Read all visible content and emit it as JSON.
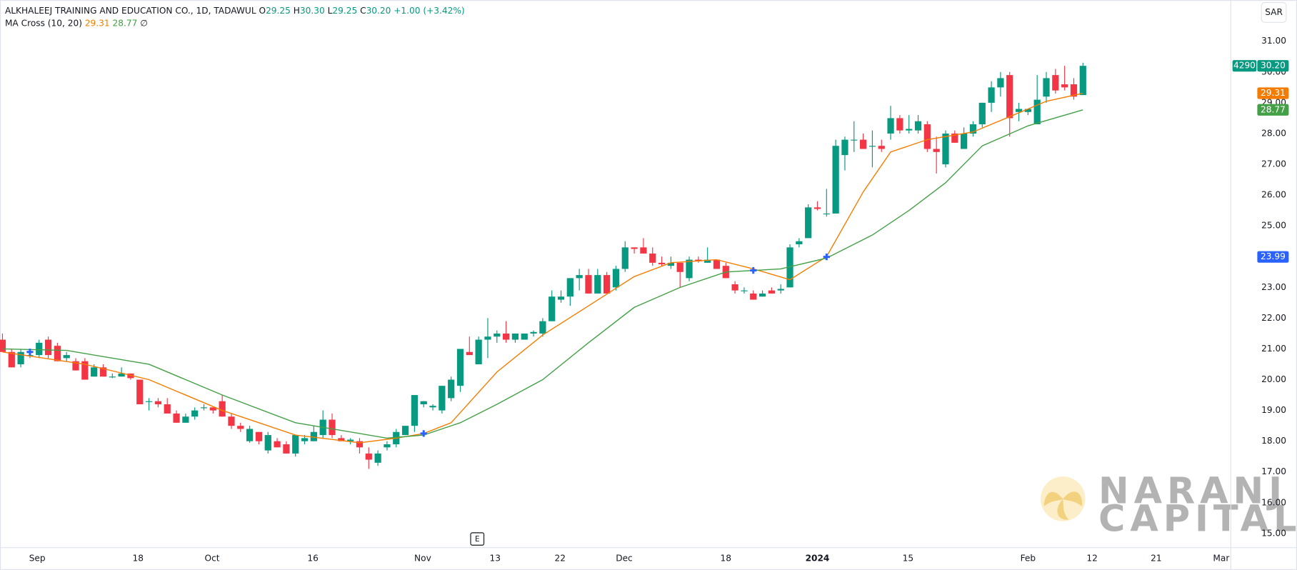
{
  "chart_data": {
    "type": "candlestick",
    "header": {
      "symbol": "ALKHALEEJ TRAINING AND EDUCATION CO., 1D, TADAWUL",
      "ohlc": [
        {
          "label": "O",
          "value": "29.25"
        },
        {
          "label": "H",
          "value": "30.30"
        },
        {
          "label": "L",
          "value": "29.25"
        },
        {
          "label": "C",
          "value": "30.20"
        }
      ],
      "change": "+1.00 (+3.42%)"
    },
    "indicator": {
      "name": "MA Cross (10, 20)",
      "values": [
        "29.31",
        "28.77"
      ],
      "symbol": "∅"
    },
    "currency": "SAR",
    "event_marker": "E",
    "watermark": [
      "NARANJ",
      "CAPITAL"
    ],
    "up_color": "#089981",
    "down_color": "#f23645",
    "candles": {
      "open": [
        21.3,
        20.9,
        20.5,
        20.8,
        20.8,
        21.3,
        21.1,
        20.7,
        20.6,
        20.6,
        20.1,
        20.4,
        20.1,
        20.1,
        20.2,
        20.0,
        19.3,
        19.3,
        19.2,
        18.9,
        18.6,
        18.8,
        19.1,
        19.1,
        19.3,
        18.8,
        18.5,
        18.0,
        18.3,
        17.7,
        18.0,
        17.9,
        17.6,
        18.0,
        18.0,
        18.2,
        18.7,
        18.1,
        18.0,
        18.0,
        17.6,
        17.3,
        17.8,
        17.9,
        18.2,
        18.5,
        19.2,
        19.1,
        19.0,
        19.4,
        19.8,
        20.9,
        20.5,
        21.3,
        21.4,
        21.5,
        21.3,
        21.3,
        21.5,
        21.5,
        21.9,
        22.6,
        22.7,
        23.3,
        23.4,
        22.8,
        23.4,
        23.0,
        23.6,
        24.3,
        24.3,
        24.1,
        23.8,
        23.7,
        23.8,
        23.3,
        23.9,
        23.8,
        23.9,
        23.7,
        23.1,
        22.9,
        22.8,
        22.7,
        22.9,
        22.9,
        23.0,
        24.4,
        24.6,
        25.6,
        25.4,
        25.4,
        27.3,
        27.8,
        27.8,
        27.6,
        27.6,
        28.0,
        28.5,
        28.1,
        28.1,
        28.3,
        27.5,
        27.0,
        28.0,
        27.5,
        28.0,
        28.3,
        29.0,
        29.5,
        29.9,
        28.7,
        28.7,
        28.3,
        29.2,
        29.9,
        29.6,
        29.6,
        29.25
      ],
      "high": [
        21.5,
        21.0,
        21.0,
        21.0,
        21.3,
        21.4,
        21.2,
        20.9,
        20.7,
        20.7,
        20.5,
        20.5,
        20.2,
        20.4,
        20.2,
        20.0,
        19.4,
        19.4,
        19.4,
        19.0,
        18.9,
        19.1,
        19.2,
        19.1,
        19.5,
        18.9,
        18.6,
        18.5,
        18.3,
        18.3,
        18.1,
        18.0,
        18.2,
        18.2,
        18.5,
        19.0,
        18.9,
        18.2,
        18.1,
        18.1,
        17.8,
        17.7,
        18.0,
        18.4,
        18.5,
        19.5,
        19.3,
        19.2,
        19.8,
        20.1,
        21.0,
        21.4,
        21.4,
        22.0,
        21.6,
        21.9,
        21.5,
        21.5,
        21.6,
        22.0,
        22.9,
        22.9,
        23.3,
        23.6,
        23.6,
        23.6,
        23.5,
        23.7,
        24.5,
        24.3,
        24.6,
        24.3,
        24.0,
        24.0,
        23.8,
        24.0,
        24.0,
        24.3,
        23.9,
        23.8,
        23.2,
        23.0,
        22.9,
        22.9,
        23.0,
        23.1,
        24.4,
        24.6,
        25.7,
        25.8,
        26.2,
        27.8,
        27.9,
        28.4,
        28.0,
        28.1,
        27.8,
        28.9,
        28.6,
        28.6,
        28.6,
        28.4,
        27.9,
        28.1,
        28.1,
        28.2,
        28.4,
        29.0,
        29.7,
        30.0,
        30.0,
        29.0,
        28.8,
        29.9,
        30.0,
        30.1,
        30.2,
        29.8,
        30.3
      ],
      "low": [
        20.9,
        20.4,
        20.4,
        20.7,
        20.7,
        20.7,
        20.6,
        20.6,
        20.3,
        20.0,
        20.1,
        20.1,
        20.05,
        20.1,
        20.0,
        19.2,
        19.0,
        19.1,
        18.9,
        18.6,
        18.6,
        18.7,
        19.0,
        18.9,
        18.8,
        18.4,
        18.3,
        17.95,
        17.9,
        17.6,
        17.8,
        17.6,
        17.5,
        17.9,
        18.0,
        18.1,
        18.1,
        18.0,
        17.9,
        17.6,
        17.1,
        17.2,
        17.7,
        17.8,
        18.2,
        18.3,
        19.1,
        19.0,
        18.9,
        19.3,
        19.6,
        20.8,
        20.5,
        20.7,
        21.2,
        21.2,
        21.2,
        21.3,
        21.4,
        21.4,
        21.9,
        22.5,
        22.4,
        22.9,
        22.8,
        22.8,
        22.8,
        22.9,
        23.5,
        24.1,
        24.1,
        23.7,
        23.7,
        23.6,
        23.0,
        23.2,
        23.8,
        23.8,
        23.6,
        23.3,
        22.8,
        22.8,
        22.6,
        22.7,
        22.8,
        22.8,
        23.0,
        24.3,
        24.6,
        25.5,
        25.3,
        25.4,
        26.8,
        27.4,
        27.5,
        26.9,
        27.4,
        27.8,
        28.0,
        28.0,
        28.0,
        27.4,
        26.7,
        26.9,
        27.7,
        27.5,
        27.9,
        28.2,
        28.7,
        29.2,
        27.9,
        28.4,
        28.6,
        28.3,
        29.0,
        29.3,
        29.4,
        29.1,
        29.25
      ],
      "close": [
        20.9,
        20.4,
        20.9,
        20.8,
        21.2,
        20.8,
        20.6,
        20.8,
        20.3,
        20.0,
        20.4,
        20.1,
        20.1,
        20.2,
        20.05,
        19.2,
        19.3,
        19.2,
        18.9,
        18.6,
        18.8,
        19.0,
        19.1,
        19.0,
        18.8,
        18.5,
        18.4,
        18.4,
        18.0,
        18.2,
        17.8,
        17.6,
        18.2,
        18.1,
        18.3,
        18.7,
        18.2,
        18.0,
        18.05,
        17.8,
        17.4,
        17.6,
        17.9,
        18.3,
        18.5,
        19.5,
        19.3,
        19.15,
        19.8,
        20.0,
        21.0,
        20.8,
        21.3,
        21.4,
        21.5,
        21.3,
        21.5,
        21.5,
        21.55,
        21.9,
        22.7,
        22.7,
        23.3,
        23.4,
        22.8,
        23.4,
        22.8,
        23.6,
        24.3,
        24.25,
        24.1,
        23.8,
        23.75,
        23.8,
        23.5,
        23.9,
        23.85,
        23.9,
        23.6,
        23.3,
        22.9,
        22.9,
        22.6,
        22.8,
        22.8,
        22.95,
        24.3,
        24.5,
        25.6,
        25.55,
        25.4,
        27.6,
        27.8,
        27.8,
        27.5,
        27.6,
        27.5,
        28.5,
        28.1,
        28.15,
        28.4,
        27.5,
        27.4,
        28.0,
        27.7,
        28.0,
        28.3,
        29.0,
        29.5,
        29.8,
        28.5,
        28.8,
        28.8,
        29.1,
        29.8,
        29.4,
        29.5,
        29.2,
        30.2
      ]
    },
    "series": [
      {
        "color": "#f57c00",
        "x": [
          0,
          9,
          16,
          24,
          32,
          39,
          43,
          46,
          49,
          54,
          59,
          64,
          69,
          73,
          78,
          82,
          86,
          90,
          94,
          97,
          101,
          106,
          110,
          114,
          118
        ],
        "values": [
          20.9,
          20.5,
          20.0,
          19.0,
          18.2,
          17.95,
          18.1,
          18.25,
          18.6,
          20.25,
          21.45,
          22.4,
          23.35,
          23.8,
          23.9,
          23.6,
          23.25,
          24.0,
          26.1,
          27.4,
          27.8,
          28.05,
          28.55,
          29.05,
          29.31
        ]
      },
      {
        "color": "#43a047",
        "x": [
          0,
          7,
          16,
          24,
          32,
          42,
          46,
          50,
          54,
          59,
          64,
          69,
          74,
          79,
          85,
          90,
          95,
          99,
          103,
          107,
          112,
          118
        ],
        "values": [
          21.0,
          20.95,
          20.5,
          19.5,
          18.6,
          18.1,
          18.2,
          18.6,
          19.2,
          20.0,
          21.2,
          22.35,
          23.0,
          23.5,
          23.6,
          23.95,
          24.7,
          25.5,
          26.4,
          27.6,
          28.25,
          28.77
        ]
      }
    ],
    "crosses": {
      "color": "#2962ff",
      "x": [
        3,
        46,
        82,
        90
      ],
      "values": [
        20.9,
        18.25,
        23.55,
        23.99
      ]
    },
    "price_labels": [
      {
        "value": 30.2,
        "label": "30.20",
        "prefix": "4290",
        "color": "#089981"
      },
      {
        "value": 29.31,
        "label": "29.31",
        "color": "#f57c00"
      },
      {
        "value": 28.77,
        "label": "28.77",
        "color": "#43a047"
      },
      {
        "value": 23.99,
        "label": "23.99",
        "color": "#2962ff"
      }
    ],
    "xlim": [
      -0.27,
      134.15
    ],
    "ylim": [
      14.54,
      32.34
    ],
    "xticks": [
      {
        "value": 3.8,
        "label": "Sep"
      },
      {
        "value": 14.8,
        "label": "18"
      },
      {
        "value": 22.9,
        "label": "Oct"
      },
      {
        "value": 33.9,
        "label": "16"
      },
      {
        "value": 45.9,
        "label": "Nov"
      },
      {
        "value": 53.8,
        "label": "13"
      },
      {
        "value": 60.9,
        "label": "22"
      },
      {
        "value": 67.9,
        "label": "Dec"
      },
      {
        "value": 79.0,
        "label": "18"
      },
      {
        "value": 89.0,
        "label": "2024"
      },
      {
        "value": 98.9,
        "label": "15"
      },
      {
        "value": 112.0,
        "label": "Feb"
      },
      {
        "value": 119.0,
        "label": "12"
      },
      {
        "value": 126.0,
        "label": "21"
      },
      {
        "value": 133.1,
        "label": "Mar"
      }
    ],
    "yticks": [
      {
        "value": 15,
        "label": "15.00"
      },
      {
        "value": 16,
        "label": "16.00"
      },
      {
        "value": 17,
        "label": "17.00"
      },
      {
        "value": 18,
        "label": "18.00"
      },
      {
        "value": 19,
        "label": "19.00"
      },
      {
        "value": 20,
        "label": "20.00"
      },
      {
        "value": 21,
        "label": "21.00"
      },
      {
        "value": 22,
        "label": "22.00"
      },
      {
        "value": 23,
        "label": "23.00"
      },
      {
        "value": 24,
        "label": "24.00"
      },
      {
        "value": 25,
        "label": "25.00"
      },
      {
        "value": 26,
        "label": "26.00"
      },
      {
        "value": 27,
        "label": "27.00"
      },
      {
        "value": 28,
        "label": "28.00"
      },
      {
        "value": 29,
        "label": "29.00"
      },
      {
        "value": 30,
        "label": "30.00"
      },
      {
        "value": 31,
        "label": "31.00"
      }
    ],
    "grid": false
  }
}
